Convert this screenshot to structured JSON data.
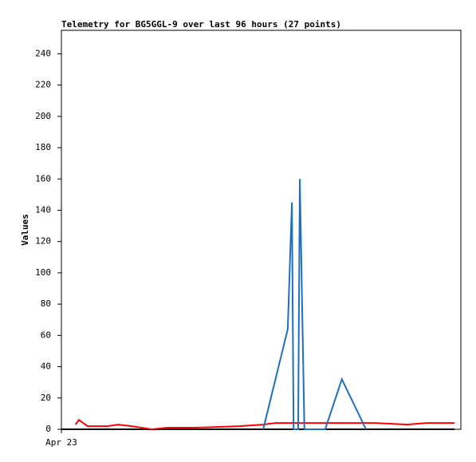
{
  "chart_data": {
    "type": "line",
    "title": "Telemetry for BG5GGL-9 over last 96 hours (27 points)",
    "y_label": "Values",
    "xlim": [
      0,
      96
    ],
    "xticks": [
      {
        "value": 0,
        "label": "Apr 23"
      }
    ],
    "ylim": [
      0,
      255
    ],
    "yticks": [
      0,
      20,
      40,
      60,
      80,
      100,
      120,
      140,
      160,
      180,
      200,
      220,
      240
    ],
    "series": [
      {
        "color": "#000000",
        "x": [
          0,
          94.5
        ],
        "values": [
          0,
          0
        ]
      },
      {
        "color": "#ff0000",
        "x": [
          3.4,
          4.2,
          6.3,
          11.1,
          13.6,
          16.9,
          21.7,
          25.5,
          32.2,
          42.7,
          48.5,
          51.4,
          75.3,
          83.0,
          87.8,
          94.5
        ],
        "values": [
          3,
          6,
          2,
          2,
          3,
          2,
          0,
          1,
          1,
          2,
          3,
          4,
          4,
          3,
          4,
          4
        ]
      },
      {
        "color": "#1f6fc0",
        "x": [
          48.5,
          54.4,
          55.4,
          55.8,
          56.9,
          57.3,
          58.4,
          63.4,
          67.4,
          73.2
        ],
        "values": [
          0,
          64,
          145,
          0,
          0,
          160,
          0,
          0,
          32,
          0
        ]
      }
    ]
  }
}
